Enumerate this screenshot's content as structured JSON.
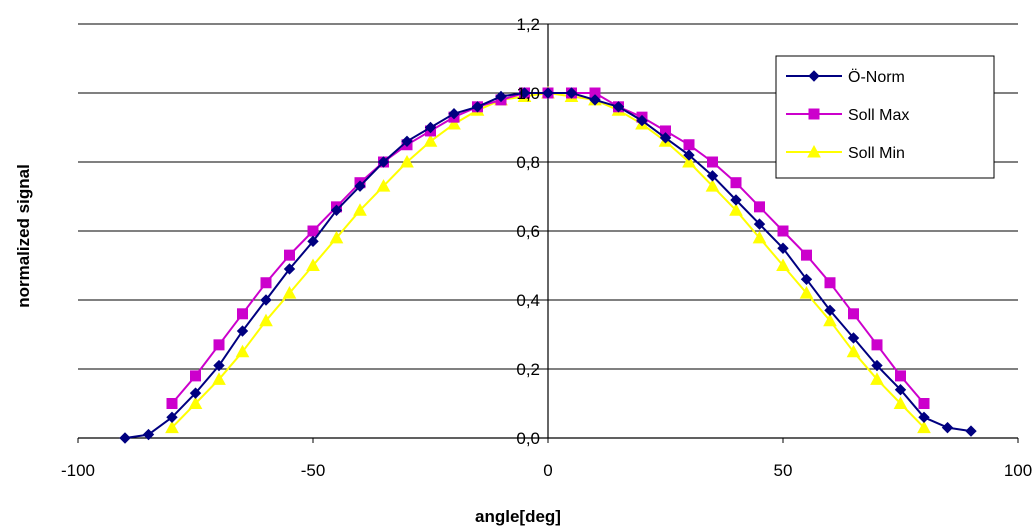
{
  "chart_data": {
    "type": "line",
    "title": "",
    "xlabel": "angle[deg]",
    "ylabel": "normalized signal",
    "xlim": [
      -100,
      100
    ],
    "ylim": [
      0,
      1.2
    ],
    "x_ticks": [
      -100,
      -50,
      0,
      50,
      100
    ],
    "x_tick_labels": [
      "-100",
      "-50",
      "0",
      "50",
      "100"
    ],
    "y_ticks": [
      0,
      0.2,
      0.4,
      0.6,
      0.8,
      1.0,
      1.2
    ],
    "y_tick_labels": [
      "0,0",
      "0,2",
      "0,4",
      "0,6",
      "0,8",
      "1,0",
      "1,2"
    ],
    "grid": "horizontal",
    "legend_position": "top-right",
    "series": [
      {
        "name": "Ö-Norm",
        "color": "#000080",
        "marker": "diamond",
        "x": [
          -90,
          -85,
          -80,
          -75,
          -70,
          -65,
          -60,
          -55,
          -50,
          -45,
          -40,
          -35,
          -30,
          -25,
          -20,
          -15,
          -10,
          -5,
          0,
          5,
          10,
          15,
          20,
          25,
          30,
          35,
          40,
          45,
          50,
          55,
          60,
          65,
          70,
          75,
          80,
          85,
          90
        ],
        "y": [
          0.0,
          0.01,
          0.06,
          0.13,
          0.21,
          0.31,
          0.4,
          0.49,
          0.57,
          0.66,
          0.73,
          0.8,
          0.86,
          0.9,
          0.94,
          0.96,
          0.99,
          1.0,
          1.0,
          1.0,
          0.98,
          0.96,
          0.92,
          0.87,
          0.82,
          0.76,
          0.69,
          0.62,
          0.55,
          0.46,
          0.37,
          0.29,
          0.21,
          0.14,
          0.06,
          0.03,
          0.02
        ]
      },
      {
        "name": "Soll Max",
        "color": "#CC00CC",
        "marker": "square",
        "x": [
          -80,
          -75,
          -70,
          -65,
          -60,
          -55,
          -50,
          -45,
          -40,
          -35,
          -30,
          -25,
          -20,
          -15,
          -10,
          -5,
          0,
          5,
          10,
          15,
          20,
          25,
          30,
          35,
          40,
          45,
          50,
          55,
          60,
          65,
          70,
          75,
          80
        ],
        "y": [
          0.1,
          0.18,
          0.27,
          0.36,
          0.45,
          0.53,
          0.6,
          0.67,
          0.74,
          0.8,
          0.85,
          0.89,
          0.93,
          0.96,
          0.98,
          1.0,
          1.0,
          1.0,
          1.0,
          0.96,
          0.93,
          0.89,
          0.85,
          0.8,
          0.74,
          0.67,
          0.6,
          0.53,
          0.45,
          0.36,
          0.27,
          0.18,
          0.1
        ]
      },
      {
        "name": "Soll Min",
        "color": "#FFFF00",
        "marker": "triangle",
        "x": [
          -80,
          -75,
          -70,
          -65,
          -60,
          -55,
          -50,
          -45,
          -40,
          -35,
          -30,
          -25,
          -20,
          -15,
          -10,
          -5,
          0,
          5,
          10,
          15,
          20,
          25,
          30,
          35,
          40,
          45,
          50,
          55,
          60,
          65,
          70,
          75,
          80
        ],
        "y": [
          0.03,
          0.1,
          0.17,
          0.25,
          0.34,
          0.42,
          0.5,
          0.58,
          0.66,
          0.73,
          0.8,
          0.86,
          0.91,
          0.95,
          0.98,
          0.99,
          1.0,
          0.99,
          0.98,
          0.95,
          0.91,
          0.86,
          0.8,
          0.73,
          0.66,
          0.58,
          0.5,
          0.42,
          0.34,
          0.25,
          0.17,
          0.1,
          0.03
        ]
      }
    ]
  }
}
